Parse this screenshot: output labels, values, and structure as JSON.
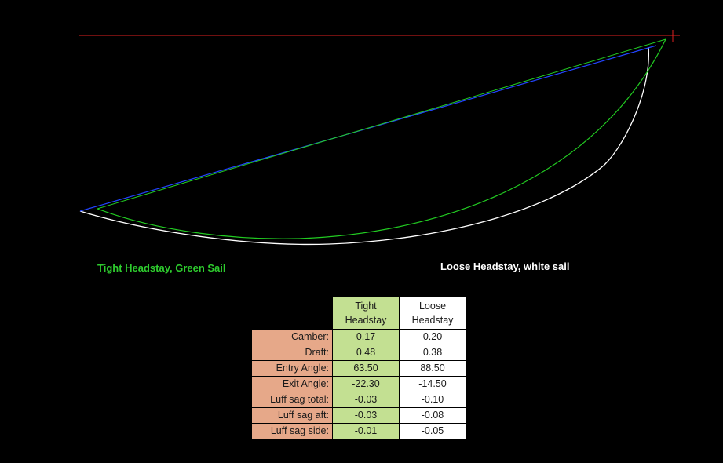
{
  "colors": {
    "background": "#000000",
    "reference_line": "#e02020",
    "tight_sail": "#22cc22",
    "tight_headstay": "#2244ff",
    "loose_sail": "#ffffff",
    "tight_caption": "#2ecc2e",
    "label_cell": "#e6a889",
    "tight_cell": "#c3e092",
    "loose_cell": "#ffffff"
  },
  "captions": {
    "tight": "Tight Headstay, Green Sail",
    "loose": "Loose Headstay, white sail"
  },
  "table": {
    "header_tight_line1": "Tight",
    "header_tight_line2": "Headstay",
    "header_loose_line1": "Loose",
    "header_loose_line2": "Headstay",
    "rows": [
      {
        "label": "Camber:",
        "tight": "0.17",
        "loose": "0.20"
      },
      {
        "label": "Draft:",
        "tight": "0.48",
        "loose": "0.38"
      },
      {
        "label": "Entry Angle:",
        "tight": "63.50",
        "loose": "88.50"
      },
      {
        "label": "Exit Angle:",
        "tight": "-22.30",
        "loose": "-14.50"
      },
      {
        "label": "Luff sag total:",
        "tight": "-0.03",
        "loose": "-0.10"
      },
      {
        "label": "Luff sag aft:",
        "tight": "-0.03",
        "loose": "-0.08"
      },
      {
        "label": "Luff sag side:",
        "tight": "-0.01",
        "loose": "-0.05"
      }
    ]
  }
}
